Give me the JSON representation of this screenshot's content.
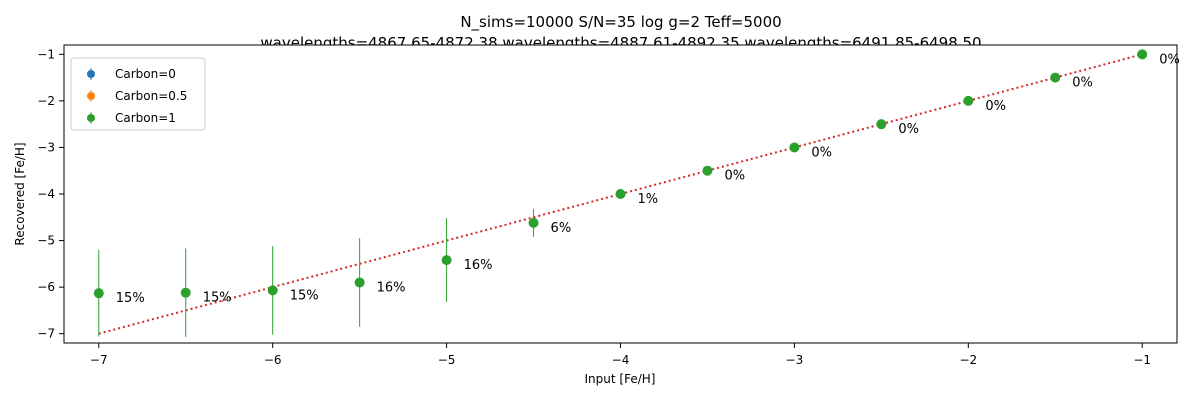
{
  "chart_data": {
    "type": "scatter",
    "title": "N_sims=10000 S/N=35 log g=2 Teff=5000",
    "subtitle": "wavelengths=4867.65-4872.38 wavelengths=4887.61-4892.35 wavelengths=6491.85-6498.50",
    "xlabel": "Input [Fe/H]",
    "ylabel": "Recovered [Fe/H]",
    "xlim": [
      -7.2,
      -0.8
    ],
    "ylim": [
      -7.2,
      -0.8
    ],
    "xticks": [
      -7,
      -6,
      -5,
      -4,
      -3,
      -2,
      -1
    ],
    "yticks": [
      -7,
      -6,
      -5,
      -4,
      -3,
      -2,
      -1
    ],
    "legend_position": "top-left",
    "series": [
      {
        "name": "Carbon=0",
        "color": "#1f77b4",
        "x": [],
        "y": [],
        "yerr": []
      },
      {
        "name": "Carbon=0.5",
        "color": "#ff7f0e",
        "x": [],
        "y": [],
        "yerr": []
      },
      {
        "name": "Carbon=1",
        "color": "#2ca02c",
        "x": [
          -7,
          -6.5,
          -6,
          -5.5,
          -5,
          -4.5,
          -4,
          -3.5,
          -3,
          -2.5,
          -2,
          -1.5,
          -1
        ],
        "y": [
          -6.13,
          -6.12,
          -6.07,
          -5.9,
          -5.42,
          -4.62,
          -4.0,
          -3.5,
          -3.0,
          -2.5,
          -2.0,
          -1.5,
          -1.0
        ],
        "yerr": [
          0.93,
          0.95,
          0.95,
          0.95,
          0.9,
          0.3,
          0.05,
          0.05,
          0.05,
          0.05,
          0.05,
          0.05,
          0.05
        ],
        "labels": [
          "15%",
          "15%",
          "15%",
          "16%",
          "16%",
          "6%",
          "1%",
          "0%",
          "0%",
          "0%",
          "0%",
          "0%",
          "0%"
        ]
      }
    ],
    "reference_line": {
      "style": "dotted",
      "color": "#d62728",
      "x": [
        -7,
        -1
      ],
      "y": [
        -7,
        -1
      ]
    }
  }
}
